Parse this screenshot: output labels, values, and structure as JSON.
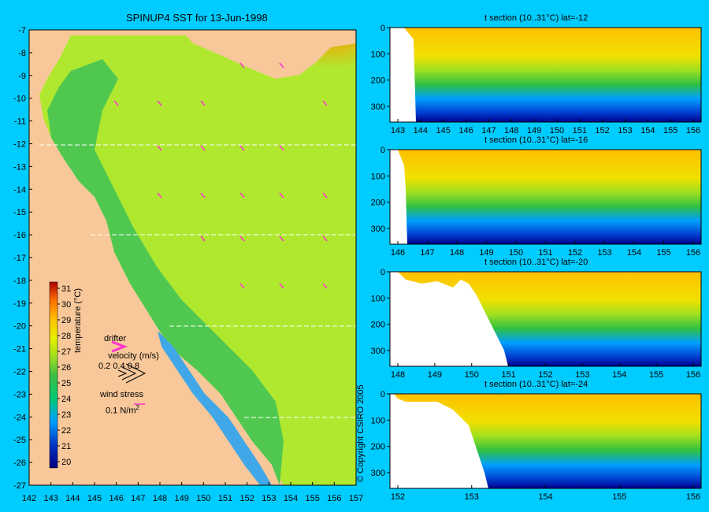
{
  "main_map": {
    "title": "SPINUP4 SST for 13-Jun-1998",
    "lat_ticks": [
      "-7",
      "-8",
      "-9",
      "-10",
      "-11",
      "-12",
      "-13",
      "-14",
      "-15",
      "-16",
      "-17",
      "-18",
      "-19",
      "-20",
      "-21",
      "-22",
      "-23",
      "-24",
      "-25",
      "-26",
      "-27"
    ],
    "lon_ticks": [
      "142",
      "143",
      "144",
      "145",
      "146",
      "147",
      "148",
      "149",
      "150",
      "151",
      "152",
      "153",
      "154",
      "155",
      "156",
      "157"
    ],
    "colorbar": {
      "label": "temperature (°C)",
      "ticks": [
        "31",
        "30",
        "29",
        "28",
        "27",
        "26",
        "25",
        "24",
        "23",
        "22",
        "21",
        "20"
      ]
    },
    "legend": {
      "drifter": "drifter",
      "velocity": "velocity (m/s)",
      "velocity_scale": "0.2 0.4 0.8",
      "wind_stress": "wind stress",
      "wind_unit": "0.1 N/m",
      "wind_unit_exp": "2"
    },
    "section_lines_lat": [
      -12,
      -16,
      -20,
      -24
    ],
    "colors": {
      "land": "#f8c89a",
      "background": "#00ccff",
      "arrow": "#ff33cc"
    }
  },
  "copyright": "© Copyright CSIRO 2005",
  "sections": [
    {
      "title": "t section (10..31°C) lat=-12",
      "depth_ticks": [
        "0",
        "100",
        "200",
        "300"
      ],
      "lon_ticks": [
        "143",
        "144",
        "145",
        "146",
        "147",
        "148",
        "149",
        "150",
        "151",
        "152",
        "153",
        "154",
        "155",
        "156"
      ]
    },
    {
      "title": "t section (10..31°C) lat=-16",
      "depth_ticks": [
        "0",
        "100",
        "200",
        "300"
      ],
      "lon_ticks": [
        "146",
        "147",
        "148",
        "149",
        "150",
        "151",
        "152",
        "153",
        "154",
        "155",
        "156"
      ]
    },
    {
      "title": "t section (10..31°C) lat=-20",
      "depth_ticks": [
        "0",
        "100",
        "200",
        "300"
      ],
      "lon_ticks": [
        "148",
        "149",
        "150",
        "151",
        "152",
        "153",
        "154",
        "155",
        "156"
      ]
    },
    {
      "title": "t section (10..31°C) lat=-24",
      "depth_ticks": [
        "0",
        "100",
        "200",
        "300"
      ],
      "lon_ticks": [
        "152",
        "153",
        "154",
        "155",
        "156"
      ]
    }
  ]
}
